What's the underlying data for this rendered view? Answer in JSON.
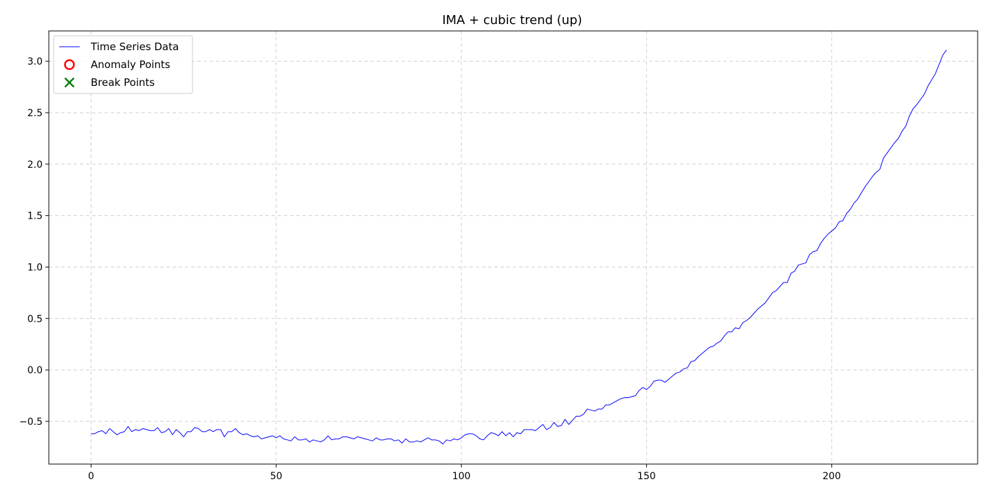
{
  "chart_data": {
    "type": "line",
    "title": "IMA + cubic trend (up)",
    "xlabel": "",
    "ylabel": "",
    "xlim": [
      -11.4,
      239.4
    ],
    "ylim": [
      -0.915,
      3.295
    ],
    "xticks": [
      0,
      50,
      100,
      150,
      200
    ],
    "xtick_labels": [
      "0",
      "50",
      "100",
      "150",
      "200"
    ],
    "yticks": [
      -0.5,
      0.0,
      0.5,
      1.0,
      1.5,
      2.0,
      2.5,
      3.0
    ],
    "ytick_labels": [
      "−0.5",
      "0.0",
      "0.5",
      "1.0",
      "1.5",
      "2.0",
      "2.5",
      "3.0"
    ],
    "grid": true,
    "legend_position": "top-left",
    "legend": [
      {
        "label": "Time Series Data",
        "marker": "line",
        "color": "#0000ff"
      },
      {
        "label": "Anomaly Points",
        "marker": "circle",
        "color": "#ff0000"
      },
      {
        "label": "Break Points",
        "marker": "x",
        "color": "#008000"
      }
    ],
    "series": [
      {
        "name": "Time Series Data",
        "color": "#0000ff",
        "x_start": 0,
        "x_step": 1,
        "values": [
          -0.62,
          -0.62,
          -0.6,
          -0.59,
          -0.62,
          -0.57,
          -0.6,
          -0.63,
          -0.61,
          -0.6,
          -0.55,
          -0.6,
          -0.58,
          -0.59,
          -0.57,
          -0.58,
          -0.59,
          -0.59,
          -0.56,
          -0.61,
          -0.6,
          -0.57,
          -0.63,
          -0.58,
          -0.61,
          -0.65,
          -0.6,
          -0.6,
          -0.56,
          -0.57,
          -0.6,
          -0.6,
          -0.58,
          -0.6,
          -0.58,
          -0.58,
          -0.65,
          -0.6,
          -0.6,
          -0.57,
          -0.61,
          -0.63,
          -0.62,
          -0.64,
          -0.65,
          -0.64,
          -0.67,
          -0.66,
          -0.65,
          -0.64,
          -0.66,
          -0.64,
          -0.67,
          -0.68,
          -0.69,
          -0.65,
          -0.68,
          -0.68,
          -0.67,
          -0.7,
          -0.68,
          -0.69,
          -0.7,
          -0.68,
          -0.64,
          -0.68,
          -0.67,
          -0.67,
          -0.65,
          -0.65,
          -0.66,
          -0.67,
          -0.65,
          -0.66,
          -0.67,
          -0.68,
          -0.69,
          -0.66,
          -0.68,
          -0.68,
          -0.67,
          -0.67,
          -0.69,
          -0.68,
          -0.71,
          -0.67,
          -0.7,
          -0.7,
          -0.69,
          -0.7,
          -0.68,
          -0.66,
          -0.68,
          -0.68,
          -0.69,
          -0.72,
          -0.68,
          -0.69,
          -0.67,
          -0.68,
          -0.66,
          -0.63,
          -0.62,
          -0.62,
          -0.64,
          -0.67,
          -0.68,
          -0.64,
          -0.61,
          -0.62,
          -0.64,
          -0.6,
          -0.64,
          -0.61,
          -0.65,
          -0.61,
          -0.62,
          -0.58,
          -0.58,
          -0.58,
          -0.59,
          -0.56,
          -0.53,
          -0.58,
          -0.56,
          -0.51,
          -0.55,
          -0.54,
          -0.48,
          -0.53,
          -0.49,
          -0.45,
          -0.45,
          -0.43,
          -0.38,
          -0.39,
          -0.4,
          -0.38,
          -0.38,
          -0.34,
          -0.34,
          -0.32,
          -0.3,
          -0.28,
          -0.27,
          -0.27,
          -0.26,
          -0.25,
          -0.2,
          -0.17,
          -0.19,
          -0.16,
          -0.11,
          -0.1,
          -0.1,
          -0.12,
          -0.09,
          -0.06,
          -0.03,
          -0.02,
          0.01,
          0.02,
          0.08,
          0.09,
          0.13,
          0.16,
          0.19,
          0.22,
          0.23,
          0.26,
          0.28,
          0.33,
          0.37,
          0.37,
          0.41,
          0.4,
          0.46,
          0.48,
          0.51,
          0.55,
          0.59,
          0.62,
          0.65,
          0.7,
          0.75,
          0.77,
          0.81,
          0.85,
          0.85,
          0.94,
          0.96,
          1.02,
          1.03,
          1.04,
          1.12,
          1.15,
          1.16,
          1.23,
          1.28,
          1.32,
          1.35,
          1.38,
          1.44,
          1.45,
          1.52,
          1.56,
          1.62,
          1.66,
          1.72,
          1.78,
          1.83,
          1.88,
          1.92,
          1.95,
          2.06,
          2.11,
          2.16,
          2.21,
          2.25,
          2.32,
          2.37,
          2.47,
          2.54,
          2.58,
          2.63,
          2.68,
          2.76,
          2.82,
          2.88,
          2.97,
          3.06,
          3.11
        ]
      }
    ]
  }
}
